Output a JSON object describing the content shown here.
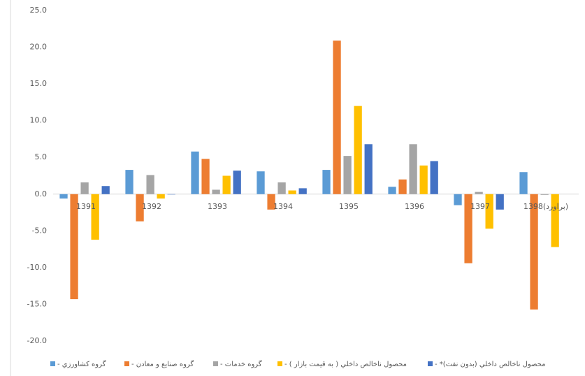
{
  "chart_data": {
    "type": "bar",
    "categories": [
      "1391",
      "1392",
      "1393",
      "1394",
      "1395",
      "1396",
      "1397",
      "1398(براورد)"
    ],
    "series": [
      {
        "name": "گروه کشاورزي - ",
        "color": "#5b9bd5",
        "values": [
          -0.6,
          3.3,
          5.8,
          3.1,
          3.3,
          1.0,
          -1.5,
          3.0
        ]
      },
      {
        "name": "گروه صنايع و معادن - ",
        "color": "#ed7d31",
        "values": [
          -14.3,
          -3.7,
          4.8,
          -2.1,
          20.9,
          2.0,
          -9.4,
          -15.7
        ]
      },
      {
        "name": "گروه خدمات - ",
        "color": "#a5a5a5",
        "values": [
          1.6,
          2.6,
          0.6,
          1.6,
          5.2,
          6.8,
          0.3,
          -0.1
        ]
      },
      {
        "name": "محصول ناخالص داخلي ( به قيمت بازار ) - ",
        "color": "#ffc000",
        "values": [
          -6.2,
          -0.6,
          2.5,
          0.5,
          12.0,
          3.9,
          -4.7,
          -7.2
        ]
      },
      {
        "name": "محصول ناخالص داخلي (بدون نفت)* - ",
        "color": "#4472c4",
        "values": [
          1.1,
          0,
          3.2,
          0.8,
          6.8,
          4.5,
          -2.1,
          null
        ]
      }
    ],
    "ylim": [
      -20,
      25
    ],
    "yticks": [
      {
        "value": -20,
        "label": "-20.0"
      },
      {
        "value": -15,
        "label": "-15.0"
      },
      {
        "value": -10,
        "label": "-10.0"
      },
      {
        "value": -5,
        "label": "-5.0"
      },
      {
        "value": 0,
        "label": "0.0"
      },
      {
        "value": 5,
        "label": "5.0"
      },
      {
        "value": 10,
        "label": "10.0"
      },
      {
        "value": 15,
        "label": "15.0"
      },
      {
        "value": 20,
        "label": "20.0"
      },
      {
        "value": 25,
        "label": "25.0"
      }
    ],
    "grid": false,
    "legend": "bottom"
  }
}
